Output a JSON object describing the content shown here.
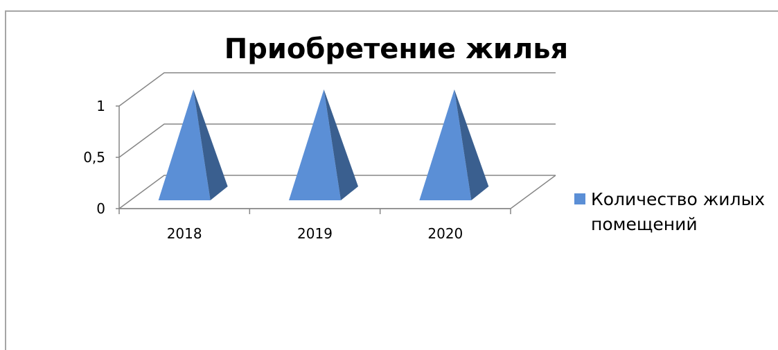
{
  "chart_data": {
    "type": "bar",
    "bar_shape": "pyramid",
    "style": "3d",
    "title": "Приобретение жилья",
    "categories": [
      "2018",
      "2019",
      "2020"
    ],
    "series": [
      {
        "name": "Количество жилых помещений",
        "values": [
          1,
          1,
          1
        ],
        "color": "#5B8FD6"
      }
    ],
    "y_ticks": [
      "0",
      "0,5",
      "1"
    ],
    "y_tick_values": [
      0,
      0.5,
      1
    ],
    "ylim": [
      0,
      1
    ],
    "grid": true,
    "legend_position": "right"
  },
  "colors": {
    "pyramid_front": "#5B8FD6",
    "pyramid_side": "#3A5F8F",
    "axis": "#868686",
    "frame": "#A5A5A5",
    "text": "#000000"
  }
}
